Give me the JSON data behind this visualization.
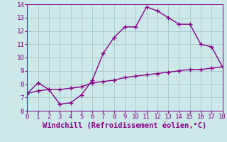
{
  "line1_x": [
    0,
    1,
    2,
    3,
    4,
    5,
    6,
    7,
    8,
    9,
    10,
    11,
    12,
    13,
    14,
    15,
    16,
    17,
    18
  ],
  "line1_y": [
    7.3,
    8.1,
    7.6,
    6.5,
    6.6,
    7.2,
    8.3,
    10.3,
    11.5,
    12.3,
    12.3,
    13.8,
    13.5,
    13.0,
    12.5,
    12.5,
    11.0,
    10.8,
    9.3
  ],
  "line2_x": [
    0,
    1,
    2,
    3,
    4,
    5,
    6,
    7,
    8,
    9,
    10,
    11,
    12,
    13,
    14,
    15,
    16,
    17,
    18
  ],
  "line2_y": [
    7.3,
    7.5,
    7.6,
    7.6,
    7.7,
    7.8,
    8.1,
    8.2,
    8.3,
    8.5,
    8.6,
    8.7,
    8.8,
    8.9,
    9.0,
    9.1,
    9.1,
    9.2,
    9.3
  ],
  "line_color": "#880088",
  "bg_color": "#cce8e8",
  "grid_color": "#aacccc",
  "xlabel": "Windchill (Refroidissement éolien,°C)",
  "ylim": [
    6,
    14
  ],
  "xlim": [
    0,
    18
  ],
  "yticks": [
    6,
    7,
    8,
    9,
    10,
    11,
    12,
    13,
    14
  ],
  "xticks": [
    0,
    1,
    2,
    3,
    4,
    5,
    6,
    7,
    8,
    9,
    10,
    11,
    12,
    13,
    14,
    15,
    16,
    17,
    18
  ],
  "marker": "+",
  "markersize": 5,
  "linewidth": 1.0,
  "xlabel_fontsize": 7.5,
  "tick_fontsize": 6.5
}
